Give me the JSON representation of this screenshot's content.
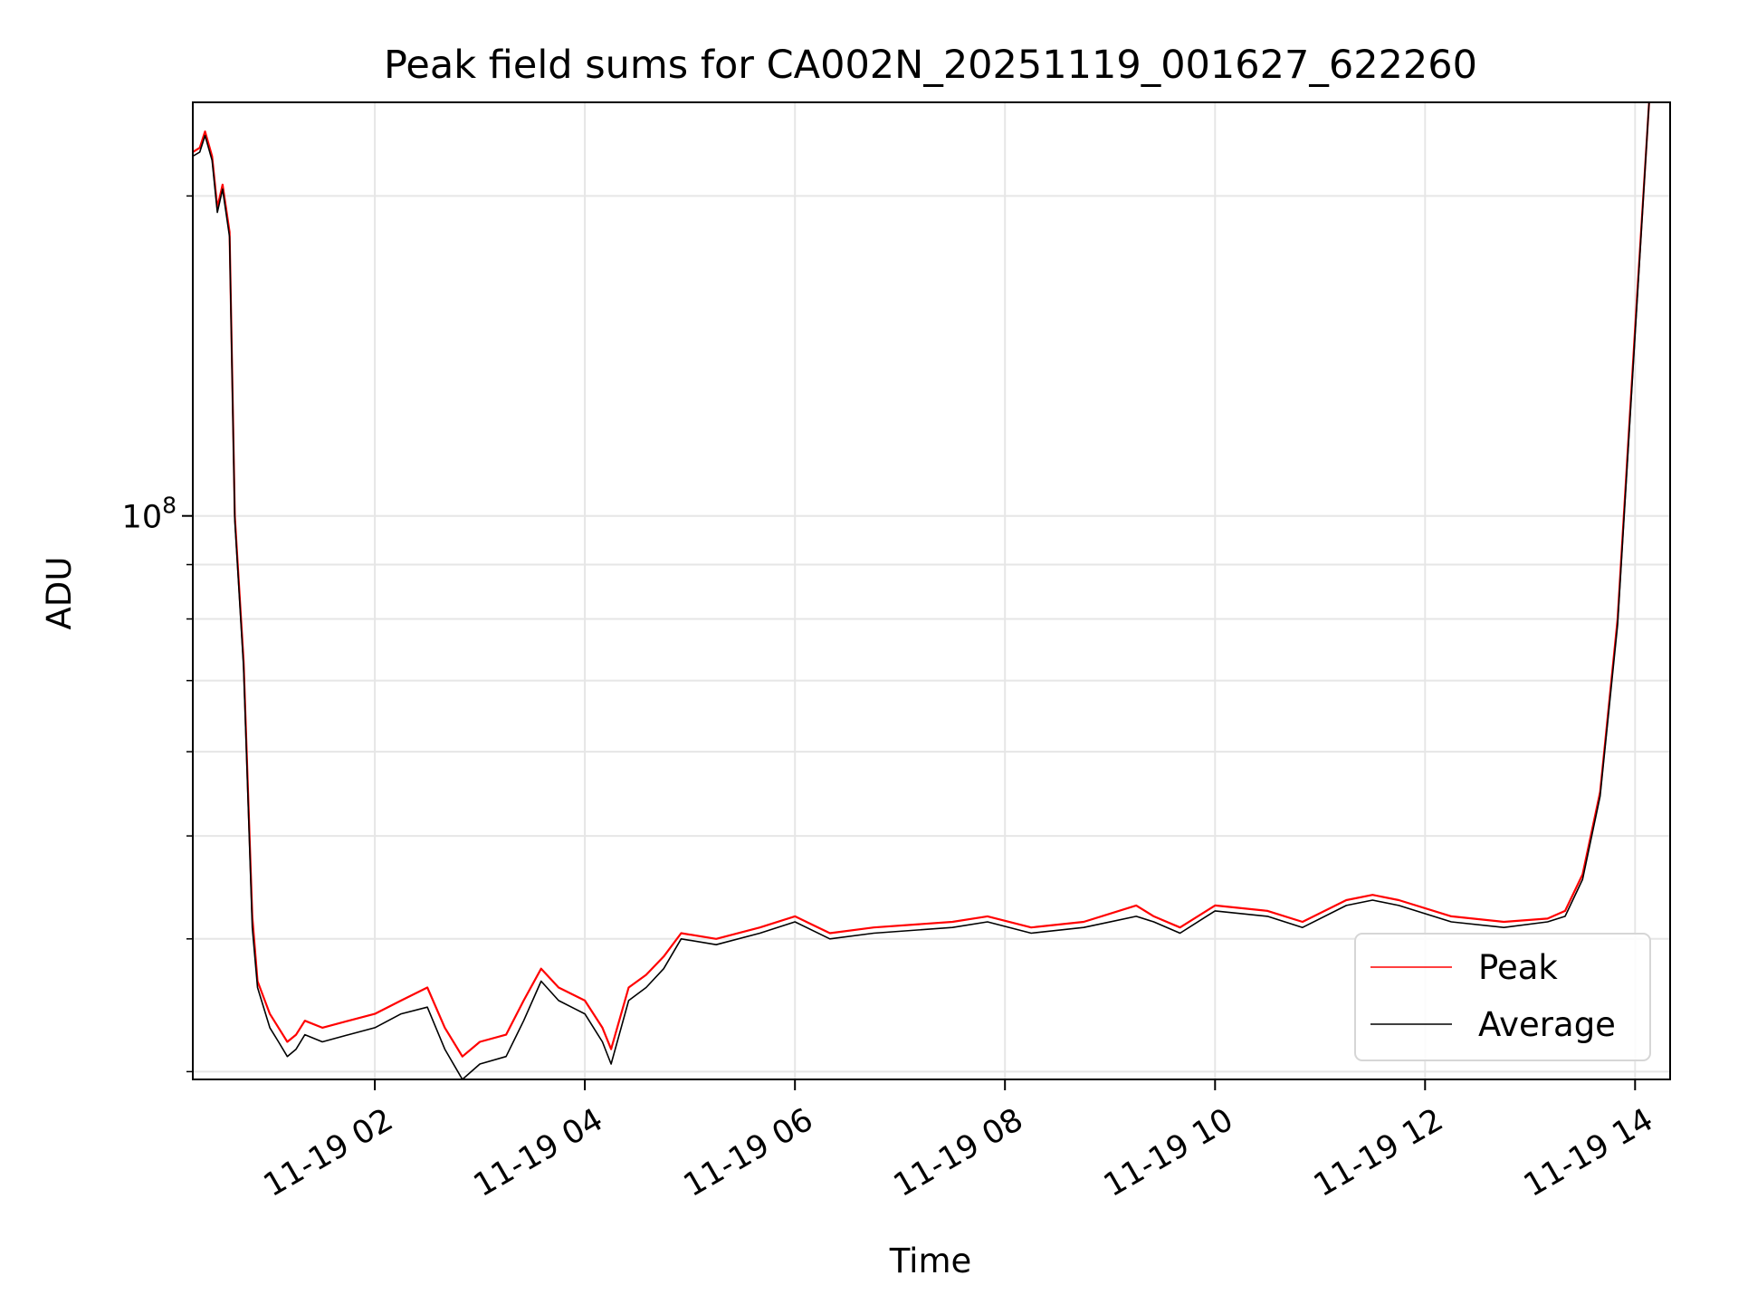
{
  "chart_data": {
    "type": "line",
    "title": "Peak field sums for CA002N_20251119_001627_622260",
    "xlabel": "Time",
    "ylabel": "ADU",
    "yscale": "log",
    "grid": true,
    "legend_position": "lower-right",
    "xlim": [
      "2025-11-19 00:16",
      "2025-11-19 14:20"
    ],
    "ylim": [
      29500000,
      245000000
    ],
    "x_ticks": [
      {
        "t": "2025-11-19 02:00",
        "label": "11-19 02"
      },
      {
        "t": "2025-11-19 04:00",
        "label": "11-19 04"
      },
      {
        "t": "2025-11-19 06:00",
        "label": "11-19 06"
      },
      {
        "t": "2025-11-19 08:00",
        "label": "11-19 08"
      },
      {
        "t": "2025-11-19 10:00",
        "label": "11-19 10"
      },
      {
        "t": "2025-11-19 12:00",
        "label": "11-19 12"
      },
      {
        "t": "2025-11-19 14:00",
        "label": "11-19 14"
      }
    ],
    "y_major_ticks": [
      {
        "value": 100000000,
        "label_base": "10",
        "label_exp": "8"
      }
    ],
    "y_minor_ticks": [
      30000000,
      40000000,
      50000000,
      60000000,
      70000000,
      80000000,
      90000000,
      200000000
    ],
    "series": [
      {
        "name": "Peak",
        "color": "#ff0000",
        "x": [
          "2025-11-19 00:16",
          "2025-11-19 00:20",
          "2025-11-19 00:23",
          "2025-11-19 00:27",
          "2025-11-19 00:30",
          "2025-11-19 00:33",
          "2025-11-19 00:37",
          "2025-11-19 00:40",
          "2025-11-19 00:45",
          "2025-11-19 00:50",
          "2025-11-19 00:53",
          "2025-11-19 01:00",
          "2025-11-19 01:05",
          "2025-11-19 01:10",
          "2025-11-19 01:15",
          "2025-11-19 01:20",
          "2025-11-19 01:30",
          "2025-11-19 01:45",
          "2025-11-19 02:00",
          "2025-11-19 02:15",
          "2025-11-19 02:30",
          "2025-11-19 02:40",
          "2025-11-19 02:50",
          "2025-11-19 03:00",
          "2025-11-19 03:15",
          "2025-11-19 03:25",
          "2025-11-19 03:35",
          "2025-11-19 03:45",
          "2025-11-19 04:00",
          "2025-11-19 04:10",
          "2025-11-19 04:15",
          "2025-11-19 04:25",
          "2025-11-19 04:35",
          "2025-11-19 04:45",
          "2025-11-19 04:55",
          "2025-11-19 05:15",
          "2025-11-19 05:40",
          "2025-11-19 06:00",
          "2025-11-19 06:20",
          "2025-11-19 06:45",
          "2025-11-19 07:30",
          "2025-11-19 07:50",
          "2025-11-19 08:15",
          "2025-11-19 08:45",
          "2025-11-19 09:15",
          "2025-11-19 09:25",
          "2025-11-19 09:40",
          "2025-11-19 10:00",
          "2025-11-19 10:30",
          "2025-11-19 10:50",
          "2025-11-19 11:15",
          "2025-11-19 11:30",
          "2025-11-19 11:45",
          "2025-11-19 12:15",
          "2025-11-19 12:45",
          "2025-11-19 13:10",
          "2025-11-19 13:20",
          "2025-11-19 13:30",
          "2025-11-19 13:40",
          "2025-11-19 13:50",
          "2025-11-19 14:00",
          "2025-11-19 14:08"
        ],
        "values": [
          220000000,
          222000000,
          230000000,
          218000000,
          195000000,
          205000000,
          185000000,
          100000000,
          73000000,
          42000000,
          36500000,
          34000000,
          33000000,
          32000000,
          32500000,
          33500000,
          33000000,
          33500000,
          34000000,
          35000000,
          36000000,
          33000000,
          31000000,
          32000000,
          32500000,
          35000000,
          37500000,
          36000000,
          35000000,
          33000000,
          31500000,
          36000000,
          37000000,
          38500000,
          40500000,
          40000000,
          41000000,
          42000000,
          40500000,
          41000000,
          41500000,
          42000000,
          41000000,
          41500000,
          43000000,
          42000000,
          41000000,
          43000000,
          42500000,
          41500000,
          43500000,
          44000000,
          43500000,
          42000000,
          41500000,
          41800000,
          42500000,
          46000000,
          55000000,
          80000000,
          150000000,
          245000000
        ]
      },
      {
        "name": "Average",
        "color": "#000000",
        "x": [
          "2025-11-19 00:16",
          "2025-11-19 00:20",
          "2025-11-19 00:23",
          "2025-11-19 00:27",
          "2025-11-19 00:30",
          "2025-11-19 00:33",
          "2025-11-19 00:37",
          "2025-11-19 00:40",
          "2025-11-19 00:45",
          "2025-11-19 00:50",
          "2025-11-19 00:53",
          "2025-11-19 01:00",
          "2025-11-19 01:05",
          "2025-11-19 01:10",
          "2025-11-19 01:15",
          "2025-11-19 01:20",
          "2025-11-19 01:30",
          "2025-11-19 01:45",
          "2025-11-19 02:00",
          "2025-11-19 02:15",
          "2025-11-19 02:30",
          "2025-11-19 02:40",
          "2025-11-19 02:50",
          "2025-11-19 03:00",
          "2025-11-19 03:15",
          "2025-11-19 03:25",
          "2025-11-19 03:35",
          "2025-11-19 03:45",
          "2025-11-19 04:00",
          "2025-11-19 04:10",
          "2025-11-19 04:15",
          "2025-11-19 04:25",
          "2025-11-19 04:35",
          "2025-11-19 04:45",
          "2025-11-19 04:55",
          "2025-11-19 05:15",
          "2025-11-19 05:40",
          "2025-11-19 06:00",
          "2025-11-19 06:20",
          "2025-11-19 06:45",
          "2025-11-19 07:30",
          "2025-11-19 07:50",
          "2025-11-19 08:15",
          "2025-11-19 08:45",
          "2025-11-19 09:15",
          "2025-11-19 09:25",
          "2025-11-19 09:40",
          "2025-11-19 10:00",
          "2025-11-19 10:30",
          "2025-11-19 10:50",
          "2025-11-19 11:15",
          "2025-11-19 11:30",
          "2025-11-19 11:45",
          "2025-11-19 12:15",
          "2025-11-19 12:45",
          "2025-11-19 13:10",
          "2025-11-19 13:20",
          "2025-11-19 13:30",
          "2025-11-19 13:40",
          "2025-11-19 13:50",
          "2025-11-19 14:00",
          "2025-11-19 14:08"
        ],
        "values": [
          218000000,
          220000000,
          228000000,
          216000000,
          193000000,
          203000000,
          183000000,
          99000000,
          72000000,
          41000000,
          36000000,
          33000000,
          32000000,
          31000000,
          31500000,
          32500000,
          32000000,
          32500000,
          33000000,
          34000000,
          34500000,
          31500000,
          29500000,
          30500000,
          31000000,
          33500000,
          36500000,
          35000000,
          34000000,
          32000000,
          30500000,
          35000000,
          36000000,
          37500000,
          40000000,
          39500000,
          40500000,
          41500000,
          40000000,
          40500000,
          41000000,
          41500000,
          40500000,
          41000000,
          42000000,
          41500000,
          40500000,
          42500000,
          42000000,
          41000000,
          43000000,
          43500000,
          43000000,
          41500000,
          41000000,
          41500000,
          42000000,
          45500000,
          54500000,
          79000000,
          148000000,
          245000000
        ]
      }
    ]
  }
}
